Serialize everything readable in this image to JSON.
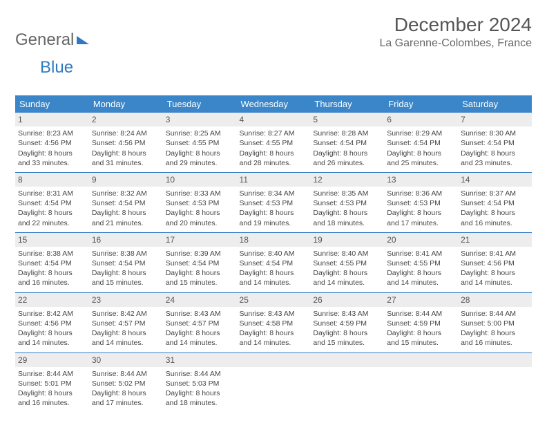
{
  "logo": {
    "part1": "General",
    "part2": "Blue"
  },
  "title": "December 2024",
  "subtitle": "La Garenne-Colombes, France",
  "colors": {
    "header_bg": "#3a86c8",
    "header_text": "#ffffff",
    "daynum_bg": "#ededed",
    "border": "#2f79c2",
    "logo_blue": "#2f79c2",
    "body_text": "#444444"
  },
  "weekdays": [
    "Sunday",
    "Monday",
    "Tuesday",
    "Wednesday",
    "Thursday",
    "Friday",
    "Saturday"
  ],
  "weeks": [
    [
      {
        "d": "1",
        "sr": "8:23 AM",
        "ss": "4:56 PM",
        "dl": "8 hours and 33 minutes."
      },
      {
        "d": "2",
        "sr": "8:24 AM",
        "ss": "4:56 PM",
        "dl": "8 hours and 31 minutes."
      },
      {
        "d": "3",
        "sr": "8:25 AM",
        "ss": "4:55 PM",
        "dl": "8 hours and 29 minutes."
      },
      {
        "d": "4",
        "sr": "8:27 AM",
        "ss": "4:55 PM",
        "dl": "8 hours and 28 minutes."
      },
      {
        "d": "5",
        "sr": "8:28 AM",
        "ss": "4:54 PM",
        "dl": "8 hours and 26 minutes."
      },
      {
        "d": "6",
        "sr": "8:29 AM",
        "ss": "4:54 PM",
        "dl": "8 hours and 25 minutes."
      },
      {
        "d": "7",
        "sr": "8:30 AM",
        "ss": "4:54 PM",
        "dl": "8 hours and 23 minutes."
      }
    ],
    [
      {
        "d": "8",
        "sr": "8:31 AM",
        "ss": "4:54 PM",
        "dl": "8 hours and 22 minutes."
      },
      {
        "d": "9",
        "sr": "8:32 AM",
        "ss": "4:54 PM",
        "dl": "8 hours and 21 minutes."
      },
      {
        "d": "10",
        "sr": "8:33 AM",
        "ss": "4:53 PM",
        "dl": "8 hours and 20 minutes."
      },
      {
        "d": "11",
        "sr": "8:34 AM",
        "ss": "4:53 PM",
        "dl": "8 hours and 19 minutes."
      },
      {
        "d": "12",
        "sr": "8:35 AM",
        "ss": "4:53 PM",
        "dl": "8 hours and 18 minutes."
      },
      {
        "d": "13",
        "sr": "8:36 AM",
        "ss": "4:53 PM",
        "dl": "8 hours and 17 minutes."
      },
      {
        "d": "14",
        "sr": "8:37 AM",
        "ss": "4:54 PM",
        "dl": "8 hours and 16 minutes."
      }
    ],
    [
      {
        "d": "15",
        "sr": "8:38 AM",
        "ss": "4:54 PM",
        "dl": "8 hours and 16 minutes."
      },
      {
        "d": "16",
        "sr": "8:38 AM",
        "ss": "4:54 PM",
        "dl": "8 hours and 15 minutes."
      },
      {
        "d": "17",
        "sr": "8:39 AM",
        "ss": "4:54 PM",
        "dl": "8 hours and 15 minutes."
      },
      {
        "d": "18",
        "sr": "8:40 AM",
        "ss": "4:54 PM",
        "dl": "8 hours and 14 minutes."
      },
      {
        "d": "19",
        "sr": "8:40 AM",
        "ss": "4:55 PM",
        "dl": "8 hours and 14 minutes."
      },
      {
        "d": "20",
        "sr": "8:41 AM",
        "ss": "4:55 PM",
        "dl": "8 hours and 14 minutes."
      },
      {
        "d": "21",
        "sr": "8:41 AM",
        "ss": "4:56 PM",
        "dl": "8 hours and 14 minutes."
      }
    ],
    [
      {
        "d": "22",
        "sr": "8:42 AM",
        "ss": "4:56 PM",
        "dl": "8 hours and 14 minutes."
      },
      {
        "d": "23",
        "sr": "8:42 AM",
        "ss": "4:57 PM",
        "dl": "8 hours and 14 minutes."
      },
      {
        "d": "24",
        "sr": "8:43 AM",
        "ss": "4:57 PM",
        "dl": "8 hours and 14 minutes."
      },
      {
        "d": "25",
        "sr": "8:43 AM",
        "ss": "4:58 PM",
        "dl": "8 hours and 14 minutes."
      },
      {
        "d": "26",
        "sr": "8:43 AM",
        "ss": "4:59 PM",
        "dl": "8 hours and 15 minutes."
      },
      {
        "d": "27",
        "sr": "8:44 AM",
        "ss": "4:59 PM",
        "dl": "8 hours and 15 minutes."
      },
      {
        "d": "28",
        "sr": "8:44 AM",
        "ss": "5:00 PM",
        "dl": "8 hours and 16 minutes."
      }
    ],
    [
      {
        "d": "29",
        "sr": "8:44 AM",
        "ss": "5:01 PM",
        "dl": "8 hours and 16 minutes."
      },
      {
        "d": "30",
        "sr": "8:44 AM",
        "ss": "5:02 PM",
        "dl": "8 hours and 17 minutes."
      },
      {
        "d": "31",
        "sr": "8:44 AM",
        "ss": "5:03 PM",
        "dl": "8 hours and 18 minutes."
      },
      {
        "empty": true
      },
      {
        "empty": true
      },
      {
        "empty": true
      },
      {
        "empty": true
      }
    ]
  ],
  "labels": {
    "sunrise": "Sunrise: ",
    "sunset": "Sunset: ",
    "daylight": "Daylight: "
  }
}
